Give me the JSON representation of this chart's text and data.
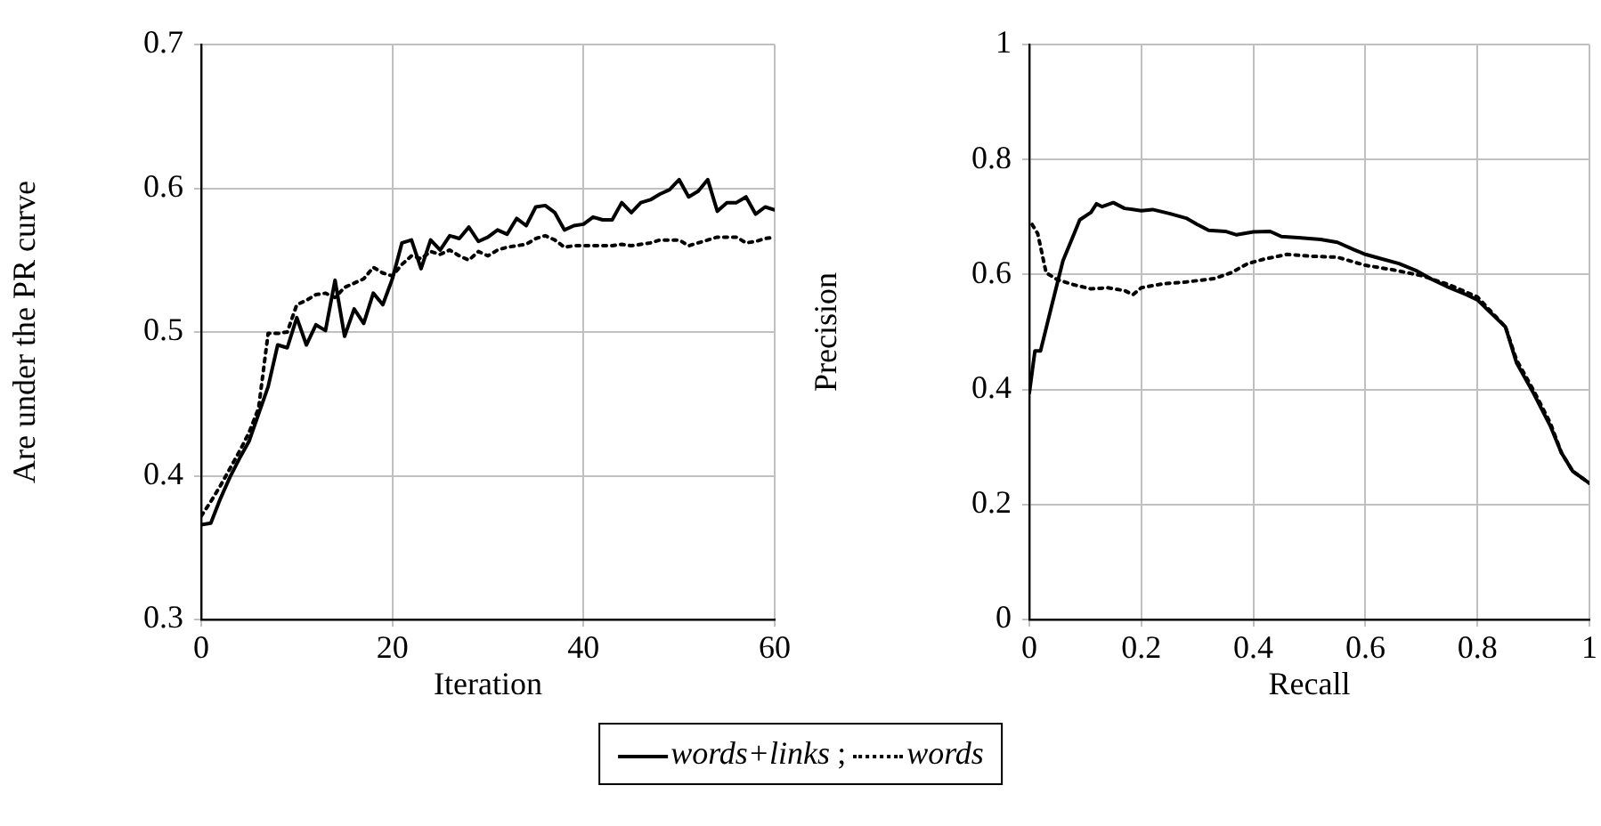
{
  "chart_data": [
    {
      "type": "line",
      "xlabel": "Iteration",
      "ylabel": "Are under the PR curve",
      "xlim": [
        0,
        60
      ],
      "ylim": [
        0.3,
        0.7
      ],
      "xticks": [
        0,
        20,
        40,
        60
      ],
      "yticks": [
        0.3,
        0.4,
        0.5,
        0.6,
        0.7
      ],
      "grid": true,
      "legend": "bottom",
      "marker": "none",
      "annotations": [
        ";"
      ],
      "x": [
        0,
        1,
        2,
        3,
        4,
        5,
        6,
        7,
        8,
        9,
        10,
        11,
        12,
        13,
        14,
        15,
        16,
        17,
        18,
        19,
        20,
        21,
        22,
        23,
        24,
        25,
        26,
        27,
        28,
        29,
        30,
        31,
        32,
        33,
        34,
        35,
        36,
        37,
        38,
        39,
        40,
        41,
        42,
        43,
        44,
        45,
        46,
        47,
        48,
        49,
        50,
        51,
        52,
        53,
        54,
        55,
        56,
        57,
        58,
        59,
        60
      ],
      "series": [
        {
          "name": "words+links",
          "color": "#000000",
          "line_style": "solid",
          "values": [
            0.366,
            0.367,
            0.384,
            0.399,
            0.412,
            0.424,
            0.443,
            0.462,
            0.491,
            0.489,
            0.51,
            0.491,
            0.505,
            0.501,
            0.536,
            0.497,
            0.516,
            0.506,
            0.527,
            0.519,
            0.537,
            0.562,
            0.564,
            0.544,
            0.564,
            0.557,
            0.567,
            0.565,
            0.573,
            0.563,
            0.566,
            0.571,
            0.568,
            0.579,
            0.574,
            0.587,
            0.588,
            0.583,
            0.571,
            0.574,
            0.575,
            0.58,
            0.578,
            0.578,
            0.59,
            0.583,
            0.59,
            0.592,
            0.596,
            0.599,
            0.606,
            0.594,
            0.598,
            0.606,
            0.584,
            0.59,
            0.59,
            0.594,
            0.582,
            0.587,
            0.585
          ]
        },
        {
          "name": "words",
          "color": "#000000",
          "line_style": "dotted",
          "values": [
            0.372,
            0.382,
            0.393,
            0.405,
            0.417,
            0.43,
            0.447,
            0.499,
            0.499,
            0.5,
            0.519,
            0.522,
            0.526,
            0.527,
            0.524,
            0.531,
            0.534,
            0.537,
            0.545,
            0.541,
            0.539,
            0.547,
            0.553,
            0.551,
            0.556,
            0.554,
            0.557,
            0.553,
            0.55,
            0.556,
            0.553,
            0.557,
            0.559,
            0.56,
            0.561,
            0.565,
            0.567,
            0.564,
            0.559,
            0.56,
            0.56,
            0.56,
            0.56,
            0.56,
            0.561,
            0.56,
            0.561,
            0.562,
            0.564,
            0.564,
            0.564,
            0.56,
            0.562,
            0.564,
            0.566,
            0.566,
            0.566,
            0.562,
            0.563,
            0.565,
            0.566
          ]
        }
      ]
    },
    {
      "type": "line",
      "xlabel": "Recall",
      "ylabel": "Precision",
      "xlim": [
        0,
        1
      ],
      "ylim": [
        0,
        1
      ],
      "xticks": [
        0,
        0.2,
        0.4,
        0.6,
        0.8,
        1
      ],
      "yticks": [
        0,
        0.2,
        0.4,
        0.6,
        0.8,
        1
      ],
      "grid": true,
      "marker": "none",
      "series": [
        {
          "color": "#000000",
          "line_style": "solid",
          "x": [
            0,
            0.01,
            0.02,
            0.04,
            0.06,
            0.08,
            0.09,
            0.11,
            0.12,
            0.13,
            0.15,
            0.17,
            0.2,
            0.22,
            0.25,
            0.28,
            0.3,
            0.32,
            0.35,
            0.37,
            0.4,
            0.43,
            0.45,
            0.48,
            0.52,
            0.55,
            0.58,
            0.6,
            0.63,
            0.66,
            0.69,
            0.72,
            0.75,
            0.78,
            0.8,
            0.82,
            0.85,
            0.87,
            0.9,
            0.93,
            0.95,
            0.97,
            1
          ],
          "values": [
            0.394,
            0.467,
            0.467,
            0.546,
            0.624,
            0.671,
            0.695,
            0.708,
            0.723,
            0.718,
            0.725,
            0.715,
            0.711,
            0.713,
            0.706,
            0.698,
            0.687,
            0.677,
            0.675,
            0.669,
            0.674,
            0.675,
            0.666,
            0.664,
            0.661,
            0.656,
            0.643,
            0.635,
            0.627,
            0.619,
            0.607,
            0.591,
            0.577,
            0.565,
            0.556,
            0.537,
            0.509,
            0.446,
            0.394,
            0.337,
            0.29,
            0.258,
            0.237
          ]
        },
        {
          "color": "#000000",
          "line_style": "dotted",
          "x": [
            0.005,
            0.015,
            0.03,
            0.05,
            0.08,
            0.11,
            0.14,
            0.17,
            0.185,
            0.2,
            0.24,
            0.28,
            0.33,
            0.36,
            0.39,
            0.42,
            0.46,
            0.5,
            0.55,
            0.6,
            0.65,
            0.7,
            0.75,
            0.8,
            0.82,
            0.85,
            0.87,
            0.9,
            0.93,
            0.95,
            0.97,
            1
          ],
          "values": [
            0.687,
            0.671,
            0.603,
            0.591,
            0.582,
            0.575,
            0.577,
            0.572,
            0.565,
            0.577,
            0.584,
            0.587,
            0.593,
            0.603,
            0.619,
            0.627,
            0.635,
            0.632,
            0.63,
            0.616,
            0.608,
            0.598,
            0.582,
            0.561,
            0.54,
            0.509,
            0.451,
            0.399,
            0.342,
            0.29,
            0.258,
            0.237
          ]
        }
      ]
    }
  ]
}
